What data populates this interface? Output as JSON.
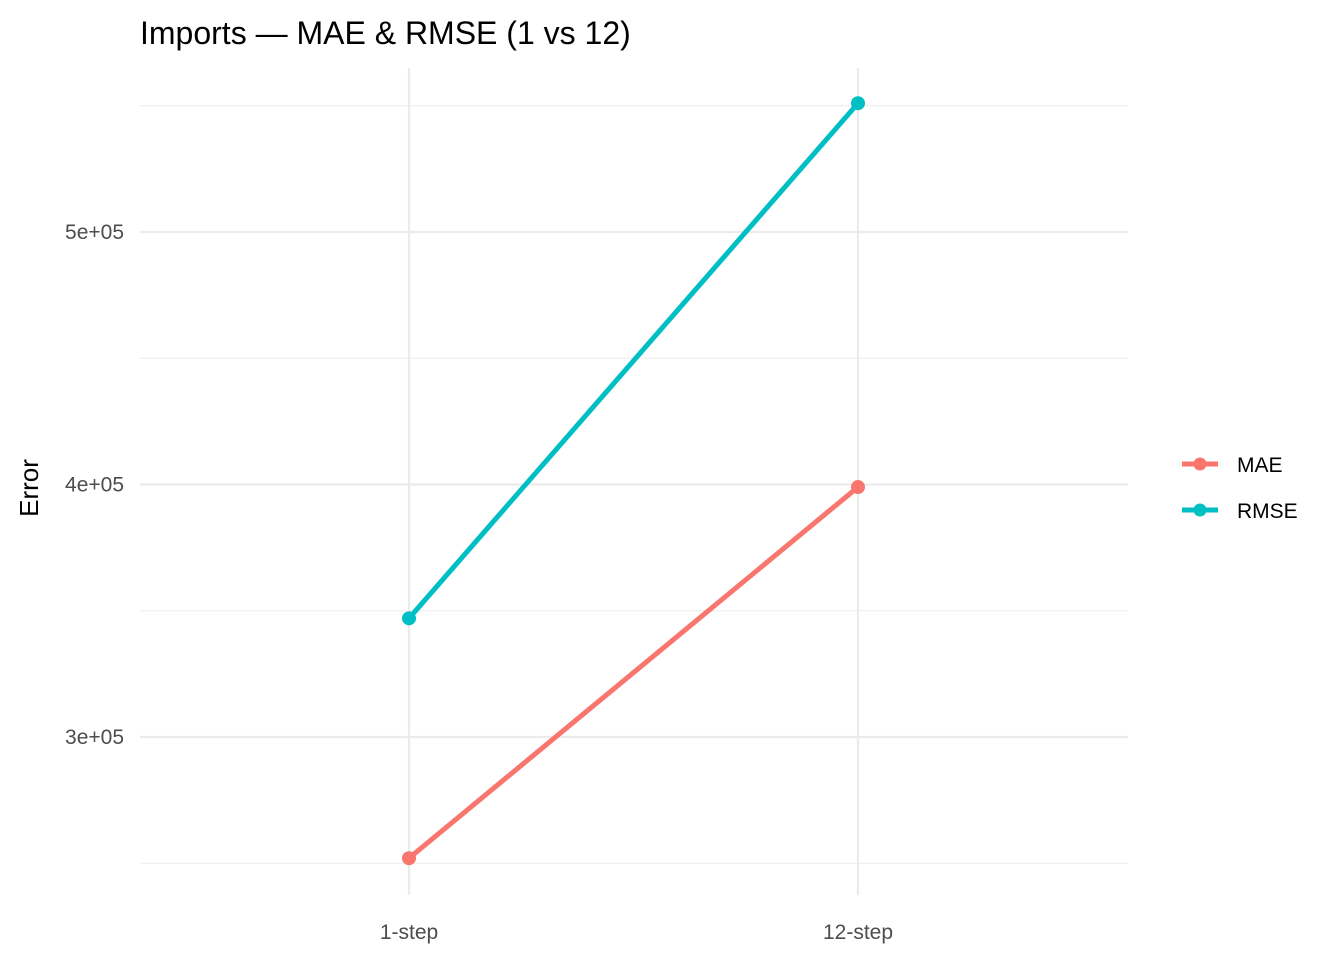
{
  "chart_data": {
    "type": "line",
    "title": "Imports — MAE & RMSE (1 vs 12)",
    "xlabel": "",
    "ylabel": "Error",
    "categories": [
      "1-step",
      "12-step"
    ],
    "ylim": [
      240000,
      555000
    ],
    "y_ticks": [
      300000,
      400000,
      500000
    ],
    "y_tick_labels": [
      "3e+05",
      "4e+05",
      "5e+05"
    ],
    "y_minor_ticks": [
      250000,
      350000,
      450000,
      550000
    ],
    "grid": true,
    "legend_position": "right",
    "series": [
      {
        "name": "MAE",
        "color": "#F8766D",
        "values": [
          252000,
          399000
        ]
      },
      {
        "name": "RMSE",
        "color": "#00BFC4",
        "values": [
          347000,
          551000
        ]
      }
    ]
  }
}
